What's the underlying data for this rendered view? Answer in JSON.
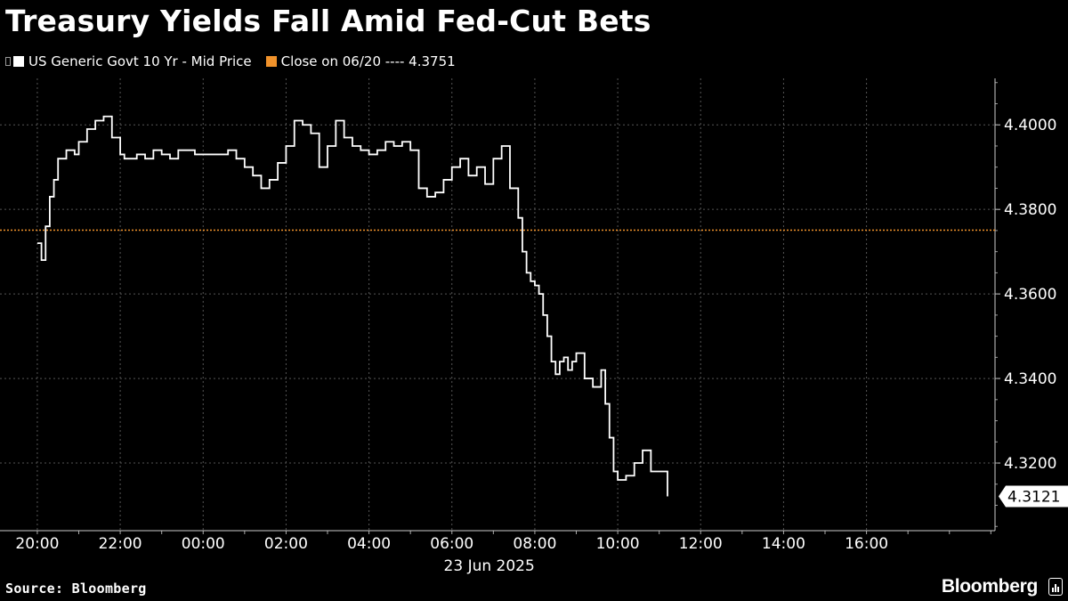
{
  "title": "Treasury Yields Fall Amid Fed-Cut Bets",
  "legend": {
    "series_label": "US Generic Govt 10 Yr - Mid Price",
    "close_label": "Close on 06/20 ---- 4.3751"
  },
  "source": "Source: Bloomberg",
  "brand": "Bloomberg",
  "colors": {
    "background": "#000000",
    "line": "#ffffff",
    "close": "#f0922b",
    "grid": "#555555"
  },
  "chart_data": {
    "type": "line",
    "title": "Treasury Yields Fall Amid Fed-Cut Bets",
    "xlabel": "23 Jun 2025",
    "ylabel": "",
    "x_ticks": [
      "20:00",
      "22:00",
      "00:00",
      "02:00",
      "04:00",
      "06:00",
      "08:00",
      "10:00",
      "12:00",
      "14:00",
      "16:00"
    ],
    "y_ticks": [
      "4.3200",
      "4.3400",
      "4.3600",
      "4.3800",
      "4.4000"
    ],
    "ylim": [
      4.304,
      4.411
    ],
    "xlim_hours": [
      -4.9,
      19.1
    ],
    "grid": true,
    "reference_line": {
      "label": "Close on 06/20",
      "value": 4.3751
    },
    "last_value_label": "4.3121",
    "series": [
      {
        "name": "US Generic Govt 10 Yr - Mid Price",
        "x_hours": [
          -4.0,
          -3.9,
          -3.8,
          -3.7,
          -3.6,
          -3.5,
          -3.3,
          -3.1,
          -3.0,
          -2.8,
          -2.6,
          -2.4,
          -2.2,
          -2.0,
          -1.9,
          -1.8,
          -1.6,
          -1.4,
          -1.2,
          -1.0,
          -0.8,
          -0.6,
          -0.4,
          -0.2,
          0.0,
          0.2,
          0.4,
          0.6,
          0.8,
          1.0,
          1.2,
          1.4,
          1.6,
          1.8,
          2.0,
          2.2,
          2.4,
          2.6,
          2.8,
          3.0,
          3.2,
          3.4,
          3.6,
          3.8,
          4.0,
          4.2,
          4.4,
          4.6,
          4.8,
          5.0,
          5.2,
          5.4,
          5.6,
          5.8,
          6.0,
          6.2,
          6.4,
          6.6,
          6.8,
          7.0,
          7.2,
          7.4,
          7.6,
          7.7,
          7.8,
          7.9,
          8.0,
          8.1,
          8.2,
          8.3,
          8.4,
          8.5,
          8.6,
          8.7,
          8.8,
          8.9,
          9.0,
          9.2,
          9.4,
          9.6,
          9.7,
          9.8,
          9.9,
          10.0,
          10.2,
          10.4,
          10.6,
          10.8,
          11.0,
          11.2
        ],
        "values": [
          4.372,
          4.368,
          4.376,
          4.383,
          4.387,
          4.392,
          4.394,
          4.393,
          4.396,
          4.399,
          4.401,
          4.402,
          4.397,
          4.393,
          4.392,
          4.392,
          4.393,
          4.392,
          4.394,
          4.393,
          4.392,
          4.394,
          4.394,
          4.393,
          4.393,
          4.393,
          4.393,
          4.394,
          4.392,
          4.39,
          4.388,
          4.385,
          4.387,
          4.391,
          4.395,
          4.401,
          4.4,
          4.398,
          4.39,
          4.395,
          4.401,
          4.397,
          4.395,
          4.394,
          4.393,
          4.394,
          4.396,
          4.395,
          4.396,
          4.394,
          4.385,
          4.383,
          4.384,
          4.387,
          4.39,
          4.392,
          4.388,
          4.39,
          4.386,
          4.392,
          4.395,
          4.385,
          4.378,
          4.37,
          4.365,
          4.363,
          4.362,
          4.36,
          4.355,
          4.35,
          4.344,
          4.341,
          4.344,
          4.345,
          4.342,
          4.344,
          4.346,
          4.34,
          4.338,
          4.342,
          4.334,
          4.326,
          4.318,
          4.316,
          4.317,
          4.32,
          4.323,
          4.318,
          4.318,
          4.3121
        ]
      }
    ]
  }
}
